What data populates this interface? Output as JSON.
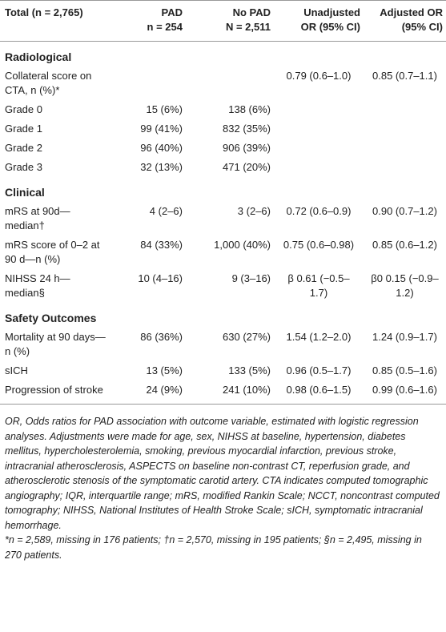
{
  "table": {
    "header": [
      [
        "Total (n = 2,765)"
      ],
      [
        "PAD",
        "n = 254"
      ],
      [
        "No PAD",
        "N = 2,511"
      ],
      [
        "Unadjusted",
        "OR (95% CI)"
      ],
      [
        "Adjusted OR",
        "(95% CI)"
      ]
    ],
    "sections": [
      {
        "title": "Radiological",
        "rows": [
          {
            "label": "Collateral score on CTA, n (%)*",
            "unadjusted": "0.79 (0.6–1.0)",
            "adjusted": "0.85 (0.7–1.1)"
          },
          {
            "label": "Grade 0",
            "pad": "15 (6%)",
            "no_pad": "138 (6%)"
          },
          {
            "label": "Grade 1",
            "pad": "99 (41%)",
            "no_pad": "832 (35%)"
          },
          {
            "label": "Grade 2",
            "pad": "96 (40%)",
            "no_pad": "906 (39%)"
          },
          {
            "label": "Grade 3",
            "pad": "32 (13%)",
            "no_pad": "471 (20%)"
          }
        ]
      },
      {
        "title": "Clinical",
        "rows": [
          {
            "label": "mRS at 90d—median†",
            "pad": "4 (2–6)",
            "no_pad": "3 (2–6)",
            "unadjusted": "0.72 (0.6–0.9)",
            "adjusted": "0.90 (0.7–1.2)"
          },
          {
            "label": "mRS score of 0–2 at 90 d—n (%)",
            "pad": "84 (33%)",
            "no_pad": "1,000 (40%)",
            "unadjusted": "0.75 (0.6–0.98)",
            "adjusted": "0.85 (0.6–1.2)"
          },
          {
            "label": "NIHSS 24 h—median§",
            "pad": "10 (4–16)",
            "no_pad": "9 (3–16)",
            "unadjusted": "β 0.61 (−0.5–1.7)",
            "adjusted": "β0 0.15 (−0.9–1.2)"
          }
        ]
      },
      {
        "title": "Safety Outcomes",
        "rows": [
          {
            "label": "Mortality at 90 days—n (%)",
            "pad": "86 (36%)",
            "no_pad": "630 (27%)",
            "unadjusted": "1.54 (1.2–2.0)",
            "adjusted": "1.24 (0.9–1.7)"
          },
          {
            "label": "sICH",
            "pad": "13 (5%)",
            "no_pad": "133 (5%)",
            "unadjusted": "0.96 (0.5–1.7)",
            "adjusted": "0.85 (0.5–1.6)"
          },
          {
            "label": "Progression of stroke",
            "pad": "24 (9%)",
            "no_pad": "241 (10%)",
            "unadjusted": "0.98 (0.6–1.5)",
            "adjusted": "0.99 (0.6–1.6)"
          }
        ]
      }
    ],
    "notes": [
      "OR, Odds ratios for PAD association with outcome variable, estimated with logistic regression analyses. Adjustments were made for age, sex, NIHSS at baseline, hypertension, diabetes mellitus, hypercholesterolemia, smoking, previous myocardial infarction, previous stroke, intracranial atherosclerosis, ASPECTS on baseline non-contrast CT, reperfusion grade, and atherosclerotic stenosis of the symptomatic carotid artery. CTA indicates computed tomographic angiography; IQR, interquartile range; mRS, modified Rankin Scale; NCCT, noncontrast computed tomography; NIHSS, National Institutes of Health Stroke Scale; sICH, symptomatic intracranial hemorrhage.",
      "*n = 2,589, missing in 176 patients; †n = 2,570, missing in 195 patients; §n = 2,495, missing in 270 patients."
    ]
  }
}
